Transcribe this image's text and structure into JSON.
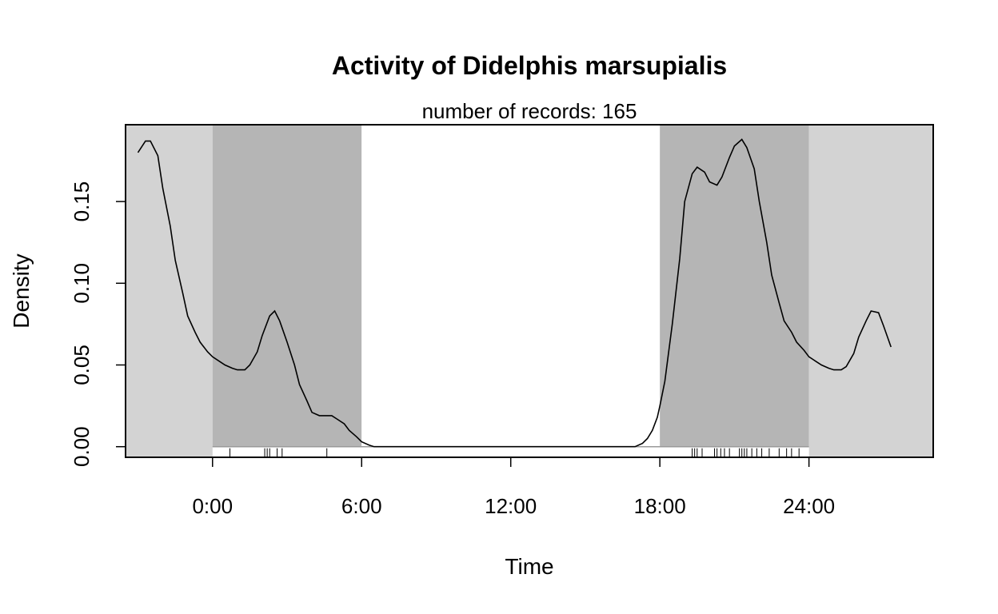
{
  "chart_data": {
    "type": "line",
    "title": "Activity of Didelphis marsupialis",
    "subtitle": "number of records: 165",
    "xlabel": "Time",
    "ylabel": "Density",
    "xlim": [
      -3.5,
      29.0
    ],
    "ylim": [
      -0.0065,
      0.197
    ],
    "x_ticks": [
      {
        "value": 0,
        "label": "0:00"
      },
      {
        "value": 6,
        "label": "6:00"
      },
      {
        "value": 12,
        "label": "12:00"
      },
      {
        "value": 18,
        "label": "18:00"
      },
      {
        "value": 24,
        "label": "24:00"
      }
    ],
    "y_ticks": [
      {
        "value": 0.0,
        "label": "0.00"
      },
      {
        "value": 0.05,
        "label": "0.05"
      },
      {
        "value": 0.1,
        "label": "0.10"
      },
      {
        "value": 0.15,
        "label": "0.15"
      }
    ],
    "shading": [
      {
        "from": -3.5,
        "to": 0,
        "color": "#d3d3d3"
      },
      {
        "from": 0,
        "to": 6,
        "color": "#b5b5b5"
      },
      {
        "from": 6,
        "to": 18,
        "color": "#ffffff"
      },
      {
        "from": 18,
        "to": 24,
        "color": "#b5b5b5"
      },
      {
        "from": 24,
        "to": 29.0,
        "color": "#d3d3d3"
      }
    ],
    "series": [
      {
        "x": [
          -3.0,
          -2.7,
          -2.5,
          -2.2,
          -2.0,
          -1.7,
          -1.5,
          -1.2,
          -1.0,
          -0.7,
          -0.5,
          -0.2,
          0.0,
          0.3,
          0.5,
          0.8,
          1.0,
          1.3,
          1.5,
          1.8,
          2.0,
          2.3,
          2.5,
          2.7,
          3.0,
          3.3,
          3.5,
          3.8,
          4.0,
          4.3,
          4.5,
          4.8,
          5.0,
          5.3,
          5.5,
          5.8,
          6.0,
          6.3,
          6.5,
          7.0,
          8.0,
          10.0,
          12.0,
          14.0,
          16.0,
          17.0,
          17.3,
          17.5,
          17.7,
          17.9,
          18.0,
          18.2,
          18.5,
          18.8,
          19.0,
          19.3,
          19.5,
          19.8,
          20.0,
          20.3,
          20.5,
          20.8,
          21.0,
          21.3,
          21.5,
          21.8,
          22.0,
          22.3,
          22.5,
          22.8,
          23.0,
          23.3,
          23.5,
          23.8,
          24.0,
          24.3,
          24.5,
          24.8,
          25.0,
          25.3,
          25.5,
          25.8,
          26.0,
          26.3,
          26.5,
          26.8,
          27.0,
          27.3
        ],
        "values": [
          0.18,
          0.187,
          0.187,
          0.178,
          0.158,
          0.135,
          0.114,
          0.094,
          0.08,
          0.07,
          0.064,
          0.058,
          0.055,
          0.052,
          0.05,
          0.048,
          0.047,
          0.047,
          0.05,
          0.058,
          0.068,
          0.08,
          0.083,
          0.077,
          0.064,
          0.05,
          0.038,
          0.028,
          0.021,
          0.019,
          0.019,
          0.019,
          0.017,
          0.014,
          0.01,
          0.006,
          0.003,
          0.001,
          0.0,
          0.0,
          0.0,
          0.0,
          0.0,
          0.0,
          0.0,
          0.0,
          0.002,
          0.005,
          0.01,
          0.018,
          0.025,
          0.04,
          0.075,
          0.115,
          0.15,
          0.167,
          0.171,
          0.168,
          0.162,
          0.16,
          0.165,
          0.177,
          0.184,
          0.188,
          0.183,
          0.17,
          0.15,
          0.125,
          0.105,
          0.088,
          0.077,
          0.07,
          0.064,
          0.059,
          0.055,
          0.052,
          0.05,
          0.048,
          0.047,
          0.047,
          0.049,
          0.057,
          0.067,
          0.077,
          0.083,
          0.082,
          0.074,
          0.061
        ]
      }
    ],
    "rug": [
      0.7,
      2.1,
      2.2,
      2.3,
      2.6,
      2.8,
      4.6,
      19.3,
      19.4,
      19.5,
      19.7,
      20.2,
      20.3,
      20.45,
      20.6,
      20.8,
      21.2,
      21.3,
      21.4,
      21.5,
      21.7,
      21.9,
      22.1,
      22.4,
      22.8,
      23.1,
      23.3,
      23.6
    ],
    "grid": false,
    "legend": "none"
  }
}
